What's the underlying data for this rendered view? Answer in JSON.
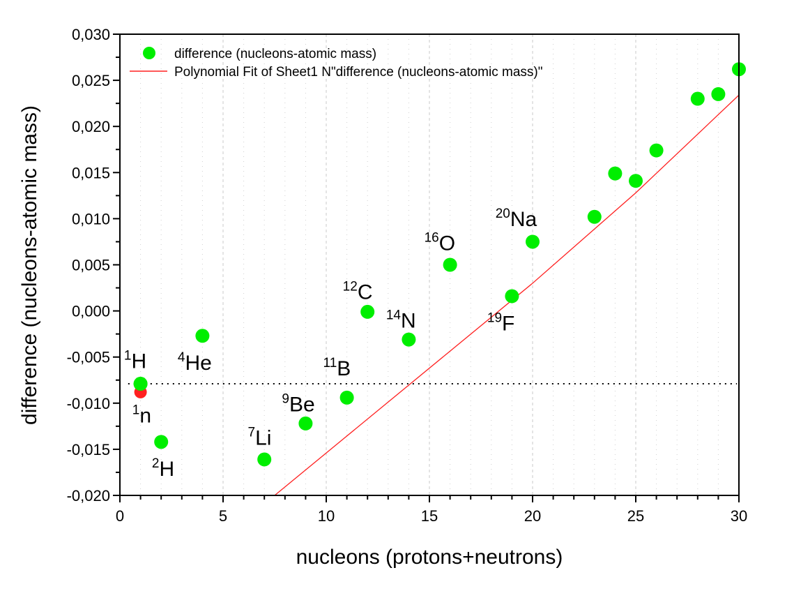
{
  "chart_data": {
    "type": "scatter",
    "xlabel": "nucleons (protons+neutrons)",
    "ylabel": "difference (nucleons-atomic mass)",
    "xlim": [
      0,
      30
    ],
    "ylim": [
      -0.02,
      0.03
    ],
    "x_ticks": [
      0,
      5,
      10,
      15,
      20,
      25,
      30
    ],
    "x_tick_labels": [
      "0",
      "5",
      "10",
      "15",
      "20",
      "25",
      "30"
    ],
    "y_ticks": [
      -0.02,
      -0.015,
      -0.01,
      -0.005,
      0.0,
      0.005,
      0.01,
      0.015,
      0.02,
      0.025,
      0.03
    ],
    "y_tick_labels": [
      "-0,020",
      "-0,015",
      "-0,010",
      "-0,005",
      "0,000",
      "0,005",
      "0,010",
      "0,015",
      "0,020",
      "0,025",
      "0,030"
    ],
    "grid": true,
    "legend_position": "top-left",
    "legend": [
      {
        "label": "difference (nucleons-atomic mass)",
        "kind": "marker",
        "color": "#00ee00"
      },
      {
        "label": "Polynomial Fit of Sheet1 N\"difference (nucleons-atomic mass)\"",
        "kind": "line",
        "color": "#ff2020"
      }
    ],
    "series": [
      {
        "name": "difference (nucleons-atomic mass)",
        "color": "#00ee00",
        "x": [
          1,
          2,
          4,
          7,
          9,
          11,
          12,
          14,
          16,
          19,
          20,
          23,
          24,
          25,
          26,
          28,
          29,
          30
        ],
        "y": [
          -0.0079,
          -0.0142,
          -0.0027,
          -0.0161,
          -0.0122,
          -0.0094,
          -0.0001,
          -0.0031,
          0.005,
          0.0016,
          0.0075,
          0.0102,
          0.0149,
          0.0141,
          0.0174,
          0.023,
          0.0235,
          0.0262
        ]
      },
      {
        "name": "neutron",
        "color": "#ff2020",
        "x": [
          1
        ],
        "y": [
          -0.0088
        ]
      },
      {
        "name": "Polynomial Fit of Sheet1 N\"difference (nucleons-atomic mass)\"",
        "type": "line",
        "color": "#ff2020",
        "x": [
          7.5,
          20,
          25,
          30
        ],
        "y": [
          -0.02,
          0.003,
          0.0128,
          0.0234
        ]
      }
    ],
    "reference_line": {
      "y": -0.0079,
      "style": "dotted",
      "color": "#000000"
    },
    "annotations": [
      {
        "mass": "1",
        "symbol": "H",
        "x": 0.2,
        "y": -0.0062
      },
      {
        "mass": "1",
        "symbol": "n",
        "x": 0.6,
        "y": -0.0121
      },
      {
        "mass": "2",
        "symbol": "H",
        "x": 1.55,
        "y": -0.0179
      },
      {
        "mass": "4",
        "symbol": "He",
        "x": 2.8,
        "y": -0.0064
      },
      {
        "mass": "7",
        "symbol": "Li",
        "x": 6.2,
        "y": -0.0145
      },
      {
        "mass": "9",
        "symbol": "Be",
        "x": 7.85,
        "y": -0.0109
      },
      {
        "mass": "11",
        "symbol": "B",
        "x": 9.85,
        "y": -0.007
      },
      {
        "mass": "12",
        "symbol": "C",
        "x": 10.8,
        "y": 0.0013
      },
      {
        "mass": "14",
        "symbol": "N",
        "x": 12.9,
        "y": -0.0018
      },
      {
        "mass": "16",
        "symbol": "O",
        "x": 14.75,
        "y": 0.0066
      },
      {
        "mass": "19",
        "symbol": "F",
        "x": 17.8,
        "y": -0.0021
      },
      {
        "mass": "20",
        "symbol": "Na",
        "x": 18.2,
        "y": 0.0092
      }
    ]
  }
}
